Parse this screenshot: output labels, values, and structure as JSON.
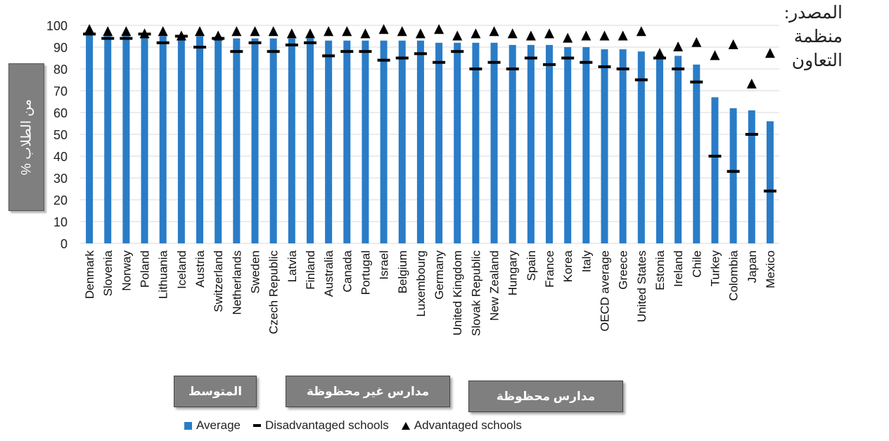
{
  "source_text": "المصدر: منظمة التعاون",
  "y_axis_box_label": "% من الطلاب",
  "tags": {
    "average": "المتوسط",
    "disadvantaged": "مدارس غير محظوظة",
    "advantaged": "مدارس محظوظة"
  },
  "legend": {
    "average": "Average",
    "disadvantaged": "Disadvantaged schools",
    "advantaged": "Advantaged schools"
  },
  "chart_data": {
    "type": "bar",
    "title": "",
    "xlabel": "",
    "ylabel": "% من الطلاب",
    "ylim": [
      0,
      100
    ],
    "yticks": [
      0,
      10,
      20,
      30,
      40,
      50,
      60,
      70,
      80,
      90,
      100
    ],
    "grid": true,
    "legend_position": "bottom",
    "categories": [
      "Denmark",
      "Slovenia",
      "Norway",
      "Poland",
      "Lithuania",
      "Iceland",
      "Austria",
      "Switzerland",
      "Netherlands",
      "Sweden",
      "Czech Republic",
      "Latvia",
      "Finland",
      "Australia",
      "Canada",
      "Portugal",
      "Israel",
      "Belgium",
      "Luxembourg",
      "Germany",
      "United Kingdom",
      "Slovak Republic",
      "New Zealand",
      "Hungary",
      "Spain",
      "France",
      "Korea",
      "Italy",
      "OECD average",
      "Greece",
      "United States",
      "Estonia",
      "Ireland",
      "Chile",
      "Turkey",
      "Colombia",
      "Japan",
      "Mexico"
    ],
    "series": [
      {
        "name": "Average",
        "mark": "bar",
        "color": "#2a7cc7",
        "values": [
          97,
          95,
          95,
          95,
          95,
          95,
          95,
          95,
          94,
          94,
          94,
          94,
          94,
          93,
          93,
          93,
          93,
          93,
          93,
          92,
          92,
          92,
          92,
          91,
          91,
          91,
          90,
          90,
          89,
          89,
          88,
          86,
          86,
          82,
          67,
          62,
          61,
          56
        ]
      },
      {
        "name": "Disadvantaged schools",
        "mark": "dash",
        "color": "#000000",
        "values": [
          96,
          94,
          94,
          96,
          92,
          95,
          90,
          94,
          88,
          92,
          88,
          91,
          92,
          86,
          88,
          88,
          84,
          85,
          87,
          83,
          88,
          80,
          83,
          80,
          85,
          82,
          85,
          83,
          81,
          80,
          75,
          85,
          80,
          74,
          40,
          33,
          50,
          24
        ]
      },
      {
        "name": "Advantaged schools",
        "mark": "triangle",
        "color": "#000000",
        "values": [
          98,
          97,
          97,
          96,
          97,
          95,
          97,
          95,
          97,
          97,
          97,
          96,
          96,
          97,
          97,
          96,
          98,
          97,
          96,
          98,
          95,
          96,
          97,
          96,
          95,
          96,
          94,
          95,
          95,
          95,
          97,
          87,
          90,
          92,
          86,
          91,
          73,
          87
        ]
      }
    ]
  }
}
